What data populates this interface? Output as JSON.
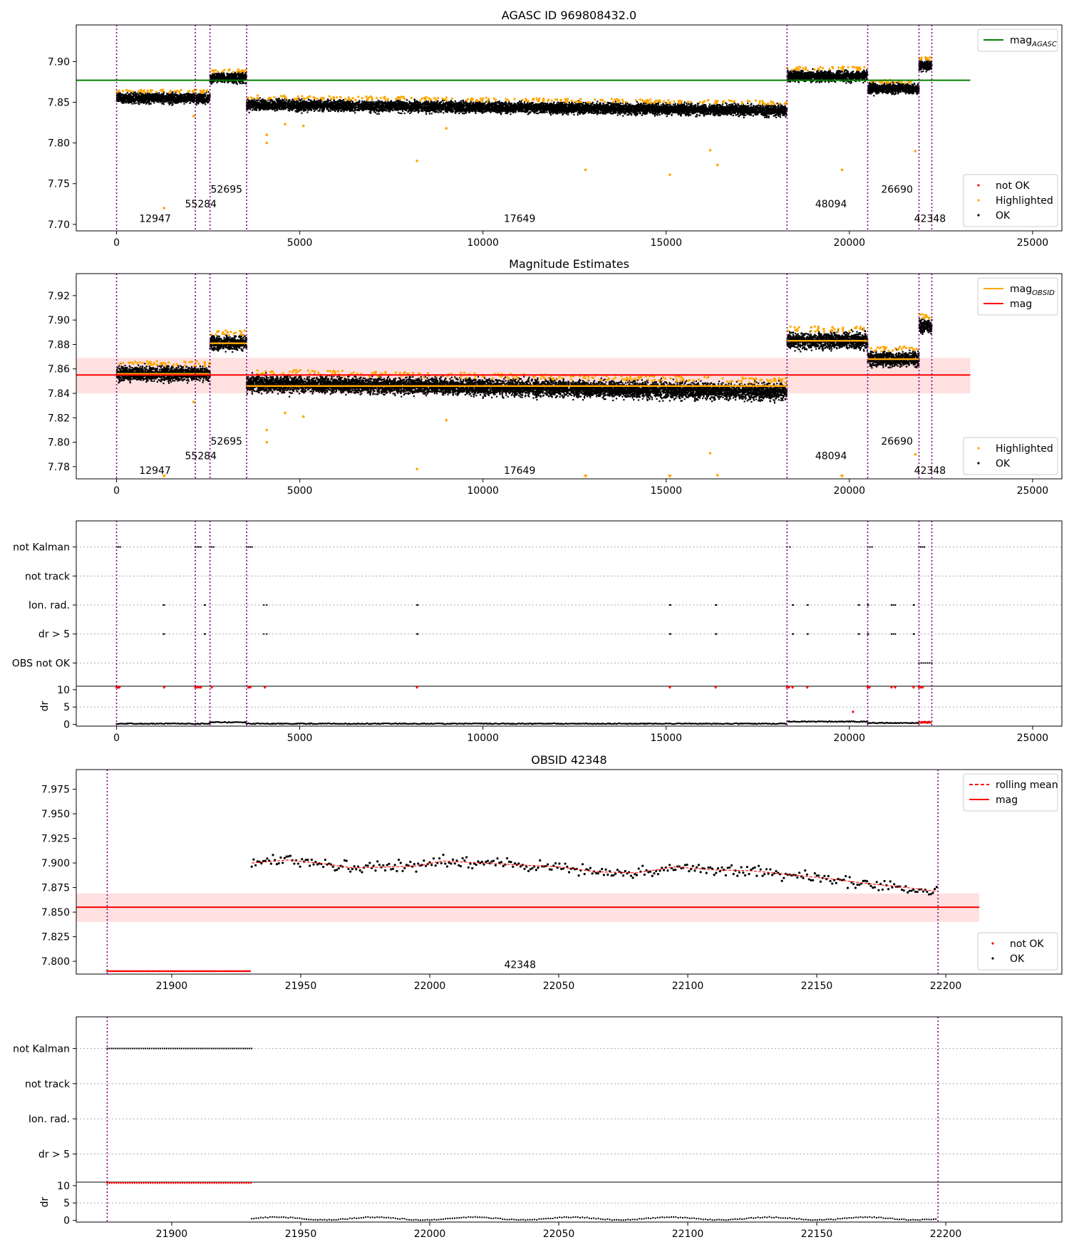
{
  "chart_data": [
    {
      "id": "agasc",
      "type": "scatter",
      "title": "AGASC ID 969808432.0",
      "xlim": [
        -1100,
        25800
      ],
      "ylim": [
        7.692,
        7.945
      ],
      "xticks": [
        0,
        5000,
        10000,
        15000,
        20000,
        25000
      ],
      "yticks": [
        7.7,
        7.75,
        7.8,
        7.85,
        7.9
      ],
      "ytick_decimals": 2,
      "vlines": [
        0,
        2150,
        2550,
        3550,
        18300,
        20500,
        21900,
        22250
      ],
      "segments": [
        {
          "x0": 0,
          "x1": 2150,
          "mag": 7.855,
          "scatter": 0.008
        },
        {
          "x0": 2150,
          "x1": 2550,
          "mag": 7.855,
          "scatter": 0.008
        },
        {
          "x0": 2550,
          "x1": 3550,
          "mag": 7.88,
          "scatter": 0.008
        },
        {
          "x0": 3550,
          "x1": 18300,
          "mag": 7.847,
          "mag_end": 7.84,
          "scatter": 0.009
        },
        {
          "x0": 18300,
          "x1": 20500,
          "mag": 7.882,
          "scatter": 0.009
        },
        {
          "x0": 20500,
          "x1": 21900,
          "mag": 7.867,
          "scatter": 0.008
        },
        {
          "x0": 21900,
          "x1": 22250,
          "mag": 7.895,
          "scatter": 0.008
        }
      ],
      "obsid_labels": [
        {
          "text": "12947",
          "x": 1050,
          "y": 7.703
        },
        {
          "text": "55284",
          "x": 2300,
          "y": 7.721
        },
        {
          "text": "52695",
          "x": 3000,
          "y": 7.739
        },
        {
          "text": "17649",
          "x": 11000,
          "y": 7.703
        },
        {
          "text": "48094",
          "x": 19500,
          "y": 7.721
        },
        {
          "text": "26690",
          "x": 21300,
          "y": 7.739
        },
        {
          "text": "42348",
          "x": 22200,
          "y": 7.703
        }
      ],
      "highlighted_outliers": [
        [
          1300,
          7.72
        ],
        [
          2100,
          7.833
        ],
        [
          4100,
          7.81
        ],
        [
          4100,
          7.8
        ],
        [
          4600,
          7.823
        ],
        [
          5100,
          7.821
        ],
        [
          8200,
          7.778
        ],
        [
          9000,
          7.818
        ],
        [
          12800,
          7.767
        ],
        [
          15100,
          7.761
        ],
        [
          16200,
          7.791
        ],
        [
          16400,
          7.773
        ],
        [
          19800,
          7.767
        ],
        [
          21800,
          7.79
        ]
      ],
      "lines": [
        {
          "name": "mag_AGASC",
          "y": 7.877,
          "x0": -1100,
          "x1": 23300,
          "color": "#008000"
        }
      ],
      "legends": [
        {
          "pos": "top-right",
          "items": [
            {
              "label": "mag",
              "sub": "AGASC",
              "kind": "line",
              "color": "#008000"
            }
          ]
        },
        {
          "pos": "bottom-right",
          "items": [
            {
              "label": "not OK",
              "kind": "dot",
              "color": "#ff0000"
            },
            {
              "label": "Highlighted",
              "kind": "dot",
              "color": "#ffa500"
            },
            {
              "label": "OK",
              "kind": "dot",
              "color": "#000000"
            }
          ]
        }
      ]
    },
    {
      "id": "estimates",
      "type": "scatter",
      "title": "Magnitude Estimates",
      "xlim": [
        -1100,
        25800
      ],
      "ylim": [
        7.77,
        7.938
      ],
      "xticks": [
        0,
        5000,
        10000,
        15000,
        20000,
        25000
      ],
      "yticks": [
        7.78,
        7.8,
        7.82,
        7.84,
        7.86,
        7.88,
        7.9,
        7.92
      ],
      "ytick_decimals": 2,
      "vlines": [
        0,
        2150,
        2550,
        3550,
        18300,
        20500,
        21900,
        22250
      ],
      "segments": [
        {
          "x0": 0,
          "x1": 2150,
          "mag": 7.856,
          "scatter": 0.008
        },
        {
          "x0": 2150,
          "x1": 2550,
          "mag": 7.856,
          "scatter": 0.008
        },
        {
          "x0": 2550,
          "x1": 3550,
          "mag": 7.881,
          "scatter": 0.008
        },
        {
          "x0": 3550,
          "x1": 18300,
          "mag": 7.848,
          "mag_end": 7.841,
          "scatter": 0.009
        },
        {
          "x0": 18300,
          "x1": 20500,
          "mag": 7.883,
          "scatter": 0.009
        },
        {
          "x0": 20500,
          "x1": 21900,
          "mag": 7.868,
          "scatter": 0.008
        },
        {
          "x0": 21900,
          "x1": 22250,
          "mag": 7.895,
          "scatter": 0.008
        }
      ],
      "obsid_mags": [
        {
          "x0": 0,
          "x1": 2550,
          "y": 7.856
        },
        {
          "x0": 2550,
          "x1": 3550,
          "y": 7.881
        },
        {
          "x0": 3550,
          "x1": 18300,
          "y": 7.846
        },
        {
          "x0": 18300,
          "x1": 20500,
          "y": 7.883
        },
        {
          "x0": 20500,
          "x1": 21900,
          "y": 7.868
        }
      ],
      "mag": {
        "y": 7.855,
        "band": [
          7.84,
          7.869
        ],
        "x0": -1100,
        "x1": 23300
      },
      "obsid_labels": [
        {
          "text": "12947",
          "x": 1050,
          "y": 7.774
        },
        {
          "text": "55284",
          "x": 2300,
          "y": 7.786
        },
        {
          "text": "52695",
          "x": 3000,
          "y": 7.798
        },
        {
          "text": "17649",
          "x": 11000,
          "y": 7.774
        },
        {
          "text": "48094",
          "x": 19500,
          "y": 7.786
        },
        {
          "text": "26690",
          "x": 21300,
          "y": 7.798
        },
        {
          "text": "42348",
          "x": 22200,
          "y": 7.774
        }
      ],
      "highlighted_outliers": [
        [
          2100,
          7.833
        ],
        [
          4100,
          7.81
        ],
        [
          4100,
          7.8
        ],
        [
          4600,
          7.824
        ],
        [
          5100,
          7.821
        ],
        [
          8200,
          7.778
        ],
        [
          9000,
          7.818
        ],
        [
          16200,
          7.791
        ],
        [
          16400,
          7.773
        ],
        [
          21800,
          7.79
        ]
      ],
      "lines": [
        {
          "name": "mag_OBSID",
          "color": "#ffa500"
        },
        {
          "name": "mag",
          "color": "#ff0000"
        }
      ],
      "legends": [
        {
          "pos": "top-right",
          "items": [
            {
              "label": "mag",
              "sub": "OBSID",
              "kind": "line",
              "color": "#ffa500"
            },
            {
              "label": "mag",
              "kind": "line",
              "color": "#ff0000"
            }
          ]
        },
        {
          "pos": "bottom-right",
          "items": [
            {
              "label": "Highlighted",
              "kind": "dot",
              "color": "#ffa500"
            },
            {
              "label": "OK",
              "kind": "dot",
              "color": "#000000"
            }
          ]
        }
      ]
    },
    {
      "id": "flags_all",
      "type": "scatter",
      "xlim": [
        -1100,
        25800
      ],
      "xticks": [
        0,
        5000,
        10000,
        15000,
        20000,
        25000
      ],
      "flag_labels": [
        "not Kalman",
        "not track",
        "Ion. rad.",
        "dr > 5",
        "OBS not OK"
      ],
      "vlines": [
        0,
        2150,
        2550,
        3550,
        18300,
        20500,
        21900,
        22250
      ],
      "flags": {
        "not Kalman": [
          [
            0,
            100
          ],
          [
            2150,
            2300
          ],
          [
            2550,
            2650
          ],
          [
            3550,
            3700
          ],
          [
            18300,
            18380
          ],
          [
            20500,
            20620
          ],
          [
            21900,
            22050
          ]
        ],
        "not track": [],
        "Ion. rad.": [
          [
            1280,
            1300
          ],
          [
            2400,
            2420
          ],
          [
            4020,
            4100
          ],
          [
            8200,
            8220
          ],
          [
            15100,
            15120
          ],
          [
            16350,
            16370
          ],
          [
            18450,
            18470
          ],
          [
            18850,
            18870
          ],
          [
            20250,
            20270
          ],
          [
            20500,
            20520
          ],
          [
            21150,
            21250
          ],
          [
            21750,
            21770
          ]
        ],
        "dr > 5": [
          [
            1280,
            1300
          ],
          [
            2400,
            2420
          ],
          [
            4020,
            4100
          ],
          [
            8200,
            8220
          ],
          [
            15100,
            15120
          ],
          [
            16350,
            16370
          ],
          [
            18450,
            18470
          ],
          [
            18850,
            18870
          ],
          [
            20250,
            20270
          ],
          [
            20500,
            20520
          ],
          [
            21150,
            21250
          ],
          [
            21750,
            21770
          ]
        ],
        "OBS not OK": [
          [
            21900,
            22250
          ]
        ]
      },
      "dr": {
        "ylim": [
          -0.5,
          11
        ],
        "yticks": [
          0,
          5,
          10
        ],
        "ylabel": "dr",
        "levels": [
          {
            "x0": 0,
            "x1": 2550,
            "dr": 0.2
          },
          {
            "x0": 2550,
            "x1": 3550,
            "dr": 0.6
          },
          {
            "x0": 3550,
            "x1": 18300,
            "dr": 0.2
          },
          {
            "x0": 18300,
            "x1": 20500,
            "dr": 0.8
          },
          {
            "x0": 20500,
            "x1": 21900,
            "dr": 0.4
          },
          {
            "x0": 21900,
            "x1": 22250,
            "dr": 0.6
          }
        ],
        "clipped_x": [
          0,
          40,
          80,
          1300,
          2150,
          2200,
          2250,
          2300,
          2600,
          3600,
          3650,
          4050,
          8200,
          15100,
          16350,
          18300,
          18350,
          18450,
          18850,
          20500,
          20550,
          21150,
          21250,
          21750,
          21900,
          21950,
          22000
        ],
        "outliers": [
          [
            20100,
            3.6
          ]
        ]
      }
    },
    {
      "id": "obsid_42348",
      "type": "line",
      "title": "OBSID 42348",
      "xlim": [
        21863,
        22245
      ],
      "ylim": [
        7.787,
        7.995
      ],
      "xticks": [
        21900,
        21950,
        22000,
        22050,
        22100,
        22150,
        22200
      ],
      "yticks": [
        7.8,
        7.825,
        7.85,
        7.875,
        7.9,
        7.925,
        7.95,
        7.975
      ],
      "ytick_decimals": 3,
      "vlines": [
        21875,
        22197
      ],
      "mag": {
        "y": 7.855,
        "band": [
          7.84,
          7.869
        ],
        "x0": 21863,
        "x1": 22213
      },
      "not_ok": {
        "x0": 21875,
        "x1": 21931,
        "y": 7.79
      },
      "ok_x_range": [
        21931,
        22197
      ],
      "rolling_mean": [
        [
          21931,
          7.9
        ],
        [
          21945,
          7.903
        ],
        [
          21960,
          7.899
        ],
        [
          21970,
          7.895
        ],
        [
          21985,
          7.896
        ],
        [
          21995,
          7.897
        ],
        [
          22005,
          7.902
        ],
        [
          22020,
          7.9
        ],
        [
          22035,
          7.898
        ],
        [
          22050,
          7.896
        ],
        [
          22065,
          7.891
        ],
        [
          22080,
          7.89
        ],
        [
          22095,
          7.896
        ],
        [
          22110,
          7.893
        ],
        [
          22125,
          7.892
        ],
        [
          22140,
          7.888
        ],
        [
          22155,
          7.884
        ],
        [
          22170,
          7.879
        ],
        [
          22185,
          7.875
        ],
        [
          22197,
          7.871
        ]
      ],
      "label": {
        "text": "42348",
        "x": 22035,
        "y": 7.793
      },
      "legends": [
        {
          "pos": "top-right",
          "items": [
            {
              "label": "rolling mean",
              "kind": "dash",
              "color": "#ff0000"
            },
            {
              "label": "mag",
              "kind": "line",
              "color": "#ff0000"
            }
          ]
        },
        {
          "pos": "bottom-right",
          "items": [
            {
              "label": "not OK",
              "kind": "dot",
              "color": "#ff0000"
            },
            {
              "label": "OK",
              "kind": "dot",
              "color": "#000000"
            }
          ]
        }
      ]
    },
    {
      "id": "flags_42348",
      "type": "scatter",
      "xlim": [
        21863,
        22245
      ],
      "xticks": [
        21900,
        21950,
        22000,
        22050,
        22100,
        22150,
        22200
      ],
      "flag_labels": [
        "not Kalman",
        "not track",
        "Ion. rad.",
        "dr > 5"
      ],
      "vlines": [
        21875,
        22197
      ],
      "flags": {
        "not Kalman": [
          [
            21875,
            21931
          ]
        ],
        "not track": [],
        "Ion. rad.": [],
        "dr > 5": []
      },
      "dr": {
        "ylim": [
          -0.5,
          11
        ],
        "yticks": [
          0,
          5,
          10
        ],
        "ylabel": "dr",
        "clipped_range": [
          21875,
          21931
        ],
        "ok_range": [
          21931,
          22197
        ]
      }
    }
  ]
}
